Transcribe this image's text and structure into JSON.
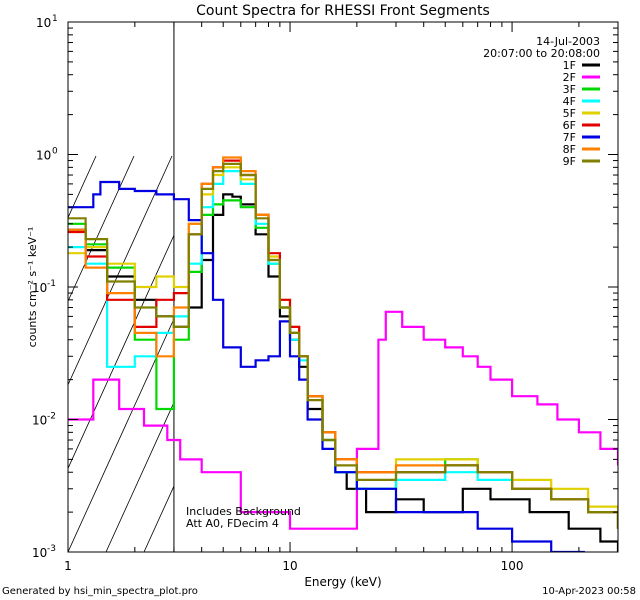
{
  "chart_data": {
    "type": "line",
    "title": "Count Spectra for RHESSI Front Segments",
    "xlabel": "Energy (keV)",
    "ylabel": "counts cm⁻² s⁻¹ keV⁻¹",
    "x_scale": "log",
    "y_scale": "log",
    "xlim": [
      1,
      300
    ],
    "ylim": [
      0.001,
      10
    ],
    "x_ticks": [
      {
        "value": 1,
        "label": "1"
      },
      {
        "value": 10,
        "label": "10"
      },
      {
        "value": 100,
        "label": "100"
      }
    ],
    "y_ticks": [
      {
        "value": 10,
        "label": "10",
        "exp": "1"
      },
      {
        "value": 1,
        "label": "10",
        "exp": "0"
      },
      {
        "value": 0.1,
        "label": "10",
        "exp": "-1"
      },
      {
        "value": 0.01,
        "label": "10",
        "exp": "-2"
      },
      {
        "value": 0.001,
        "label": "10",
        "exp": "-3"
      }
    ],
    "excluded_region": [
      1,
      3
    ],
    "date": "14-Jul-2003",
    "time_range": "20:07:00 to 20:08:00",
    "annotations": [
      "Includes Background",
      "Att A0, FDecim 4"
    ],
    "series": [
      {
        "name": "1F",
        "color": "#000000",
        "points": [
          [
            1.0,
            0.27
          ],
          [
            1.2,
            0.19
          ],
          [
            1.5,
            0.12
          ],
          [
            2.0,
            0.08
          ],
          [
            2.5,
            0.06
          ],
          [
            3.0,
            0.05
          ],
          [
            3.5,
            0.07
          ],
          [
            4.0,
            0.16
          ],
          [
            4.5,
            0.35
          ],
          [
            5.0,
            0.5
          ],
          [
            5.5,
            0.48
          ],
          [
            6.0,
            0.42
          ],
          [
            7.0,
            0.25
          ],
          [
            8.0,
            0.12
          ],
          [
            9.0,
            0.06
          ],
          [
            10.0,
            0.04
          ],
          [
            11.0,
            0.025
          ],
          [
            12.0,
            0.012
          ],
          [
            14.0,
            0.007
          ],
          [
            16.0,
            0.004
          ],
          [
            18.0,
            0.003
          ],
          [
            22.0,
            0.002
          ],
          [
            30.0,
            0.0025
          ],
          [
            40.0,
            0.002
          ],
          [
            60.0,
            0.003
          ],
          [
            80.0,
            0.0025
          ],
          [
            120.0,
            0.002
          ],
          [
            180.0,
            0.0015
          ],
          [
            250.0,
            0.0012
          ],
          [
            300.0,
            0.001
          ]
        ]
      },
      {
        "name": "2F",
        "color": "#ff00ff",
        "points": [
          [
            1.0,
            0.01
          ],
          [
            1.3,
            0.02
          ],
          [
            1.7,
            0.012
          ],
          [
            2.2,
            0.009
          ],
          [
            2.8,
            0.007
          ],
          [
            3.2,
            0.005
          ],
          [
            4.0,
            0.004
          ],
          [
            5.0,
            0.004
          ],
          [
            6.0,
            0.002
          ],
          [
            7.0,
            0.002
          ],
          [
            8.5,
            0.002
          ],
          [
            10.0,
            0.0015
          ],
          [
            15.0,
            0.0015
          ],
          [
            20.0,
            0.006
          ],
          [
            25.0,
            0.04
          ],
          [
            27.0,
            0.065
          ],
          [
            32.0,
            0.05
          ],
          [
            40.0,
            0.04
          ],
          [
            50.0,
            0.035
          ],
          [
            60.0,
            0.03
          ],
          [
            70.0,
            0.025
          ],
          [
            80.0,
            0.02
          ],
          [
            100.0,
            0.015
          ],
          [
            130.0,
            0.013
          ],
          [
            160.0,
            0.01
          ],
          [
            200.0,
            0.008
          ],
          [
            250.0,
            0.006
          ],
          [
            300.0,
            0.0045
          ]
        ]
      },
      {
        "name": "3F",
        "color": "#00d800",
        "points": [
          [
            1.0,
            0.3
          ],
          [
            1.2,
            0.21
          ],
          [
            1.5,
            0.14
          ],
          [
            2.0,
            0.04
          ],
          [
            2.5,
            0.012
          ],
          [
            3.0,
            0.04
          ],
          [
            3.5,
            0.13
          ],
          [
            4.0,
            0.35
          ],
          [
            4.5,
            0.42
          ],
          [
            5.0,
            0.45
          ],
          [
            6.0,
            0.4
          ],
          [
            7.0,
            0.28
          ],
          [
            8.0,
            0.15
          ],
          [
            9.0,
            0.07
          ],
          [
            10.0,
            0.045
          ],
          [
            11.0,
            0.03
          ],
          [
            12.0,
            0.015
          ],
          [
            14.0,
            0.008
          ],
          [
            16.0,
            0.004
          ],
          [
            20.0,
            0.003
          ],
          [
            30.0,
            0.004
          ],
          [
            50.0,
            0.005
          ],
          [
            70.0,
            0.004
          ],
          [
            100.0,
            0.003
          ],
          [
            150.0,
            0.0025
          ],
          [
            220.0,
            0.002
          ],
          [
            300.0,
            0.0015
          ]
        ]
      },
      {
        "name": "4F",
        "color": "#00ffff",
        "points": [
          [
            1.0,
            0.2
          ],
          [
            1.2,
            0.15
          ],
          [
            1.5,
            0.025
          ],
          [
            2.0,
            0.03
          ],
          [
            2.5,
            0.045
          ],
          [
            3.0,
            0.06
          ],
          [
            3.5,
            0.15
          ],
          [
            4.0,
            0.4
          ],
          [
            4.5,
            0.6
          ],
          [
            5.0,
            0.75
          ],
          [
            6.0,
            0.6
          ],
          [
            7.0,
            0.3
          ],
          [
            8.0,
            0.15
          ],
          [
            9.0,
            0.07
          ],
          [
            10.0,
            0.04
          ],
          [
            11.0,
            0.028
          ],
          [
            12.0,
            0.015
          ],
          [
            14.0,
            0.007
          ],
          [
            16.0,
            0.004
          ],
          [
            20.0,
            0.003
          ],
          [
            30.0,
            0.0035
          ],
          [
            50.0,
            0.004
          ],
          [
            70.0,
            0.0035
          ],
          [
            100.0,
            0.003
          ],
          [
            150.0,
            0.0025
          ],
          [
            220.0,
            0.002
          ],
          [
            300.0,
            0.0015
          ]
        ]
      },
      {
        "name": "5F",
        "color": "#e0d000",
        "points": [
          [
            1.0,
            0.18
          ],
          [
            1.2,
            0.2
          ],
          [
            1.5,
            0.15
          ],
          [
            2.0,
            0.1
          ],
          [
            2.5,
            0.12
          ],
          [
            3.0,
            0.1
          ],
          [
            3.5,
            0.3
          ],
          [
            4.0,
            0.5
          ],
          [
            4.5,
            0.7
          ],
          [
            5.0,
            0.8
          ],
          [
            6.0,
            0.65
          ],
          [
            7.0,
            0.35
          ],
          [
            8.0,
            0.17
          ],
          [
            9.0,
            0.08
          ],
          [
            10.0,
            0.05
          ],
          [
            11.0,
            0.03
          ],
          [
            12.0,
            0.015
          ],
          [
            14.0,
            0.008
          ],
          [
            16.0,
            0.005
          ],
          [
            20.0,
            0.004
          ],
          [
            30.0,
            0.005
          ],
          [
            50.0,
            0.005
          ],
          [
            70.0,
            0.004
          ],
          [
            100.0,
            0.0035
          ],
          [
            150.0,
            0.003
          ],
          [
            220.0,
            0.0022
          ],
          [
            300.0,
            0.0017
          ]
        ]
      },
      {
        "name": "6F",
        "color": "#e00000",
        "points": [
          [
            1.0,
            0.26
          ],
          [
            1.2,
            0.17
          ],
          [
            1.5,
            0.08
          ],
          [
            2.0,
            0.05
          ],
          [
            2.5,
            0.08
          ],
          [
            3.0,
            0.09
          ],
          [
            3.5,
            0.25
          ],
          [
            4.0,
            0.6
          ],
          [
            4.5,
            0.8
          ],
          [
            5.0,
            0.9
          ],
          [
            6.0,
            0.7
          ],
          [
            7.0,
            0.35
          ],
          [
            8.0,
            0.18
          ],
          [
            9.0,
            0.08
          ],
          [
            10.0,
            0.05
          ],
          [
            11.0,
            0.03
          ],
          [
            12.0,
            0.015
          ],
          [
            14.0,
            0.008
          ],
          [
            16.0,
            0.005
          ],
          [
            20.0,
            0.004
          ],
          [
            30.0,
            0.004
          ],
          [
            50.0,
            0.0045
          ],
          [
            70.0,
            0.004
          ],
          [
            100.0,
            0.003
          ],
          [
            150.0,
            0.0025
          ],
          [
            220.0,
            0.002
          ],
          [
            300.0,
            0.0015
          ]
        ]
      },
      {
        "name": "7F",
        "color": "#0000e0",
        "points": [
          [
            1.0,
            0.4
          ],
          [
            1.3,
            0.5
          ],
          [
            1.4,
            0.62
          ],
          [
            1.7,
            0.55
          ],
          [
            2.0,
            0.53
          ],
          [
            2.5,
            0.5
          ],
          [
            3.0,
            0.46
          ],
          [
            3.5,
            0.32
          ],
          [
            4.0,
            0.18
          ],
          [
            4.5,
            0.08
          ],
          [
            5.0,
            0.035
          ],
          [
            6.0,
            0.025
          ],
          [
            7.0,
            0.028
          ],
          [
            8.0,
            0.03
          ],
          [
            9.0,
            0.055
          ],
          [
            10.0,
            0.03
          ],
          [
            11.0,
            0.02
          ],
          [
            12.0,
            0.01
          ],
          [
            14.0,
            0.006
          ],
          [
            16.0,
            0.004
          ],
          [
            20.0,
            0.003
          ],
          [
            30.0,
            0.002
          ],
          [
            50.0,
            0.002
          ],
          [
            70.0,
            0.0015
          ],
          [
            100.0,
            0.0012
          ],
          [
            150.0,
            0.001
          ],
          [
            200.0,
            0.001
          ]
        ]
      },
      {
        "name": "8F",
        "color": "#ff8000",
        "points": [
          [
            1.0,
            0.27
          ],
          [
            1.2,
            0.14
          ],
          [
            1.5,
            0.09
          ],
          [
            2.0,
            0.045
          ],
          [
            2.5,
            0.03
          ],
          [
            3.0,
            0.07
          ],
          [
            3.5,
            0.3
          ],
          [
            4.0,
            0.6
          ],
          [
            4.5,
            0.8
          ],
          [
            5.0,
            0.95
          ],
          [
            6.0,
            0.75
          ],
          [
            7.0,
            0.35
          ],
          [
            8.0,
            0.16
          ],
          [
            9.0,
            0.07
          ],
          [
            10.0,
            0.045
          ],
          [
            11.0,
            0.03
          ],
          [
            12.0,
            0.015
          ],
          [
            14.0,
            0.008
          ],
          [
            16.0,
            0.005
          ],
          [
            20.0,
            0.004
          ],
          [
            30.0,
            0.0045
          ],
          [
            50.0,
            0.0045
          ],
          [
            70.0,
            0.004
          ],
          [
            100.0,
            0.003
          ],
          [
            150.0,
            0.0025
          ],
          [
            220.0,
            0.002
          ],
          [
            300.0,
            0.0015
          ]
        ]
      },
      {
        "name": "9F",
        "color": "#808000",
        "points": [
          [
            1.0,
            0.33
          ],
          [
            1.2,
            0.23
          ],
          [
            1.5,
            0.11
          ],
          [
            2.0,
            0.07
          ],
          [
            2.5,
            0.06
          ],
          [
            3.0,
            0.05
          ],
          [
            3.5,
            0.25
          ],
          [
            4.0,
            0.55
          ],
          [
            4.5,
            0.75
          ],
          [
            5.0,
            0.85
          ],
          [
            6.0,
            0.7
          ],
          [
            7.0,
            0.33
          ],
          [
            8.0,
            0.16
          ],
          [
            9.0,
            0.07
          ],
          [
            10.0,
            0.045
          ],
          [
            11.0,
            0.03
          ],
          [
            12.0,
            0.014
          ],
          [
            14.0,
            0.007
          ],
          [
            16.0,
            0.0045
          ],
          [
            20.0,
            0.0035
          ],
          [
            30.0,
            0.004
          ],
          [
            50.0,
            0.0045
          ],
          [
            70.0,
            0.004
          ],
          [
            100.0,
            0.003
          ],
          [
            150.0,
            0.0025
          ],
          [
            220.0,
            0.002
          ],
          [
            300.0,
            0.0015
          ]
        ]
      }
    ]
  },
  "footer": {
    "generated_by": "Generated by hsi_min_spectra_plot.pro",
    "timestamp": "10-Apr-2023 00:58"
  }
}
